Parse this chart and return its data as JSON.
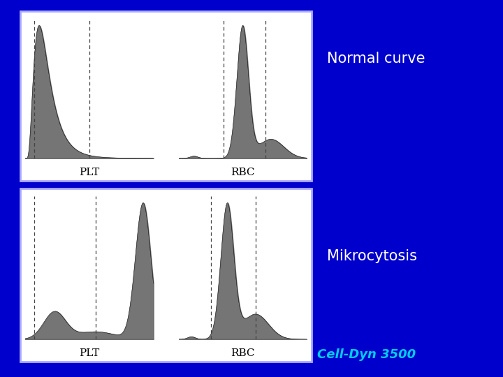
{
  "bg_color": "#0000CC",
  "panel_bg": "#FFFFFF",
  "text_color": "#FFFFFF",
  "label_normal": "Normal curve",
  "label_mikro": "Mikrocytosis",
  "label_celldyn": "Cell-Dyn 3500",
  "label_plt": "PLT",
  "label_rbc": "RBC",
  "title_fontsize": 15,
  "celldyn_fontsize": 13,
  "fill_color": "#666666",
  "line_color": "#111111",
  "dash_color": "#444444"
}
